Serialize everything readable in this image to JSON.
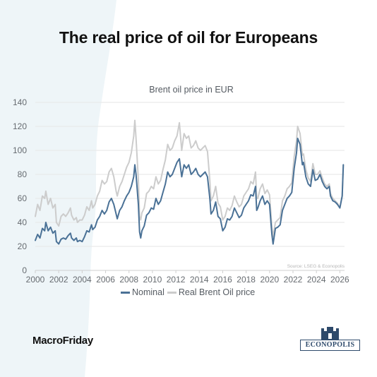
{
  "headline": "The real price of oil for Europeans",
  "footer": {
    "tag": "MacroFriday",
    "logo_text": "ECONOPOLIS"
  },
  "colors": {
    "nominal": "#4a7196",
    "real": "#cccccc",
    "background_band": "#eef5f8"
  },
  "chart_data": {
    "type": "line",
    "title": "Brent oil price in EUR",
    "source_note": "Source: LSEG & Econopolis",
    "xlim": [
      2000,
      2026.4
    ],
    "ylim": [
      0,
      140
    ],
    "yticks": [
      "0",
      "20",
      "40",
      "60",
      "80",
      "100",
      "120",
      "140"
    ],
    "xticks": [
      "2000",
      "2002",
      "2004",
      "2006",
      "2008",
      "2010",
      "2012",
      "2014",
      "2016",
      "2018",
      "2020",
      "2022",
      "2024",
      "2026"
    ],
    "grid": "horizontal",
    "legend_position": "bottom",
    "series": [
      {
        "name": "Nominal",
        "points": [
          [
            2000.0,
            25
          ],
          [
            2000.2,
            30
          ],
          [
            2000.4,
            27
          ],
          [
            2000.6,
            35
          ],
          [
            2000.8,
            33
          ],
          [
            2000.9,
            40
          ],
          [
            2001.1,
            33
          ],
          [
            2001.3,
            36
          ],
          [
            2001.5,
            31
          ],
          [
            2001.7,
            33
          ],
          [
            2001.8,
            24
          ],
          [
            2002.0,
            22
          ],
          [
            2002.2,
            26
          ],
          [
            2002.4,
            27
          ],
          [
            2002.6,
            26
          ],
          [
            2002.8,
            29
          ],
          [
            2003.0,
            31
          ],
          [
            2003.1,
            27
          ],
          [
            2003.3,
            25
          ],
          [
            2003.5,
            27
          ],
          [
            2003.6,
            24
          ],
          [
            2003.8,
            25
          ],
          [
            2004.0,
            24
          ],
          [
            2004.2,
            28
          ],
          [
            2004.4,
            33
          ],
          [
            2004.6,
            32
          ],
          [
            2004.8,
            38
          ],
          [
            2004.9,
            34
          ],
          [
            2005.1,
            36
          ],
          [
            2005.3,
            42
          ],
          [
            2005.5,
            45
          ],
          [
            2005.7,
            50
          ],
          [
            2005.9,
            47
          ],
          [
            2006.1,
            50
          ],
          [
            2006.3,
            57
          ],
          [
            2006.5,
            60
          ],
          [
            2006.7,
            55
          ],
          [
            2006.9,
            47
          ],
          [
            2007.0,
            43
          ],
          [
            2007.2,
            50
          ],
          [
            2007.4,
            53
          ],
          [
            2007.6,
            58
          ],
          [
            2007.8,
            62
          ],
          [
            2008.0,
            65
          ],
          [
            2008.2,
            70
          ],
          [
            2008.4,
            78
          ],
          [
            2008.5,
            88
          ],
          [
            2008.6,
            80
          ],
          [
            2008.8,
            55
          ],
          [
            2008.9,
            32
          ],
          [
            2009.0,
            27
          ],
          [
            2009.1,
            33
          ],
          [
            2009.3,
            37
          ],
          [
            2009.5,
            46
          ],
          [
            2009.7,
            48
          ],
          [
            2009.9,
            52
          ],
          [
            2010.1,
            51
          ],
          [
            2010.3,
            60
          ],
          [
            2010.5,
            55
          ],
          [
            2010.7,
            58
          ],
          [
            2010.9,
            65
          ],
          [
            2011.1,
            72
          ],
          [
            2011.3,
            82
          ],
          [
            2011.5,
            78
          ],
          [
            2011.7,
            80
          ],
          [
            2011.9,
            85
          ],
          [
            2012.1,
            90
          ],
          [
            2012.3,
            93
          ],
          [
            2012.5,
            78
          ],
          [
            2012.7,
            88
          ],
          [
            2012.9,
            85
          ],
          [
            2013.1,
            88
          ],
          [
            2013.3,
            80
          ],
          [
            2013.5,
            82
          ],
          [
            2013.7,
            85
          ],
          [
            2013.9,
            80
          ],
          [
            2014.1,
            78
          ],
          [
            2014.3,
            80
          ],
          [
            2014.5,
            82
          ],
          [
            2014.7,
            78
          ],
          [
            2014.9,
            60
          ],
          [
            2015.0,
            47
          ],
          [
            2015.2,
            50
          ],
          [
            2015.4,
            57
          ],
          [
            2015.6,
            45
          ],
          [
            2015.8,
            43
          ],
          [
            2016.0,
            33
          ],
          [
            2016.2,
            36
          ],
          [
            2016.4,
            43
          ],
          [
            2016.6,
            42
          ],
          [
            2016.8,
            45
          ],
          [
            2017.0,
            52
          ],
          [
            2017.2,
            48
          ],
          [
            2017.4,
            44
          ],
          [
            2017.6,
            46
          ],
          [
            2017.8,
            52
          ],
          [
            2018.0,
            55
          ],
          [
            2018.2,
            58
          ],
          [
            2018.4,
            63
          ],
          [
            2018.6,
            62
          ],
          [
            2018.8,
            70
          ],
          [
            2018.9,
            50
          ],
          [
            2019.0,
            52
          ],
          [
            2019.2,
            58
          ],
          [
            2019.4,
            62
          ],
          [
            2019.6,
            55
          ],
          [
            2019.8,
            58
          ],
          [
            2020.0,
            55
          ],
          [
            2020.2,
            30
          ],
          [
            2020.3,
            22
          ],
          [
            2020.5,
            35
          ],
          [
            2020.7,
            36
          ],
          [
            2020.9,
            38
          ],
          [
            2021.1,
            50
          ],
          [
            2021.3,
            55
          ],
          [
            2021.5,
            60
          ],
          [
            2021.7,
            62
          ],
          [
            2021.9,
            65
          ],
          [
            2022.1,
            85
          ],
          [
            2022.3,
            98
          ],
          [
            2022.4,
            110
          ],
          [
            2022.6,
            105
          ],
          [
            2022.8,
            88
          ],
          [
            2022.9,
            90
          ],
          [
            2023.1,
            78
          ],
          [
            2023.3,
            72
          ],
          [
            2023.5,
            70
          ],
          [
            2023.7,
            84
          ],
          [
            2023.9,
            75
          ],
          [
            2024.1,
            76
          ],
          [
            2024.3,
            80
          ],
          [
            2024.5,
            74
          ],
          [
            2024.7,
            70
          ],
          [
            2024.9,
            68
          ],
          [
            2025.1,
            70
          ],
          [
            2025.2,
            62
          ],
          [
            2025.4,
            58
          ],
          [
            2025.6,
            57
          ],
          [
            2025.8,
            55
          ],
          [
            2026.0,
            52
          ],
          [
            2026.2,
            62
          ],
          [
            2026.3,
            88
          ]
        ]
      },
      {
        "name": "Real Brent Oil price",
        "points": [
          [
            2000.0,
            45
          ],
          [
            2000.2,
            55
          ],
          [
            2000.4,
            50
          ],
          [
            2000.6,
            62
          ],
          [
            2000.8,
            60
          ],
          [
            2000.9,
            66
          ],
          [
            2001.1,
            55
          ],
          [
            2001.3,
            60
          ],
          [
            2001.5,
            52
          ],
          [
            2001.7,
            55
          ],
          [
            2001.8,
            40
          ],
          [
            2002.0,
            37
          ],
          [
            2002.2,
            45
          ],
          [
            2002.4,
            47
          ],
          [
            2002.6,
            45
          ],
          [
            2002.8,
            48
          ],
          [
            2003.0,
            52
          ],
          [
            2003.1,
            46
          ],
          [
            2003.3,
            42
          ],
          [
            2003.5,
            44
          ],
          [
            2003.6,
            40
          ],
          [
            2003.8,
            42
          ],
          [
            2004.0,
            42
          ],
          [
            2004.2,
            46
          ],
          [
            2004.4,
            53
          ],
          [
            2004.6,
            50
          ],
          [
            2004.8,
            58
          ],
          [
            2004.9,
            52
          ],
          [
            2005.1,
            55
          ],
          [
            2005.3,
            62
          ],
          [
            2005.5,
            66
          ],
          [
            2005.7,
            75
          ],
          [
            2005.9,
            72
          ],
          [
            2006.1,
            74
          ],
          [
            2006.3,
            82
          ],
          [
            2006.5,
            85
          ],
          [
            2006.7,
            78
          ],
          [
            2006.9,
            66
          ],
          [
            2007.0,
            62
          ],
          [
            2007.2,
            70
          ],
          [
            2007.4,
            74
          ],
          [
            2007.6,
            80
          ],
          [
            2007.8,
            86
          ],
          [
            2008.0,
            90
          ],
          [
            2008.2,
            98
          ],
          [
            2008.4,
            112
          ],
          [
            2008.5,
            125
          ],
          [
            2008.6,
            110
          ],
          [
            2008.8,
            75
          ],
          [
            2008.9,
            45
          ],
          [
            2009.0,
            42
          ],
          [
            2009.1,
            48
          ],
          [
            2009.3,
            52
          ],
          [
            2009.5,
            64
          ],
          [
            2009.7,
            66
          ],
          [
            2009.9,
            70
          ],
          [
            2010.1,
            68
          ],
          [
            2010.3,
            78
          ],
          [
            2010.5,
            72
          ],
          [
            2010.7,
            75
          ],
          [
            2010.9,
            84
          ],
          [
            2011.1,
            92
          ],
          [
            2011.3,
            105
          ],
          [
            2011.5,
            100
          ],
          [
            2011.7,
            102
          ],
          [
            2011.9,
            108
          ],
          [
            2012.1,
            112
          ],
          [
            2012.3,
            123
          ],
          [
            2012.5,
            100
          ],
          [
            2012.7,
            114
          ],
          [
            2012.9,
            110
          ],
          [
            2013.1,
            112
          ],
          [
            2013.3,
            102
          ],
          [
            2013.5,
            104
          ],
          [
            2013.7,
            108
          ],
          [
            2013.9,
            102
          ],
          [
            2014.1,
            100
          ],
          [
            2014.3,
            102
          ],
          [
            2014.5,
            104
          ],
          [
            2014.7,
            99
          ],
          [
            2014.9,
            75
          ],
          [
            2015.0,
            58
          ],
          [
            2015.2,
            62
          ],
          [
            2015.4,
            70
          ],
          [
            2015.6,
            56
          ],
          [
            2015.8,
            53
          ],
          [
            2016.0,
            42
          ],
          [
            2016.2,
            45
          ],
          [
            2016.4,
            52
          ],
          [
            2016.6,
            50
          ],
          [
            2016.8,
            54
          ],
          [
            2017.0,
            62
          ],
          [
            2017.2,
            57
          ],
          [
            2017.4,
            53
          ],
          [
            2017.6,
            55
          ],
          [
            2017.8,
            62
          ],
          [
            2018.0,
            65
          ],
          [
            2018.2,
            68
          ],
          [
            2018.4,
            74
          ],
          [
            2018.6,
            72
          ],
          [
            2018.8,
            82
          ],
          [
            2018.9,
            60
          ],
          [
            2019.0,
            60
          ],
          [
            2019.2,
            68
          ],
          [
            2019.4,
            72
          ],
          [
            2019.6,
            64
          ],
          [
            2019.8,
            67
          ],
          [
            2020.0,
            63
          ],
          [
            2020.2,
            36
          ],
          [
            2020.3,
            28
          ],
          [
            2020.5,
            40
          ],
          [
            2020.7,
            42
          ],
          [
            2020.9,
            44
          ],
          [
            2021.1,
            58
          ],
          [
            2021.3,
            62
          ],
          [
            2021.5,
            68
          ],
          [
            2021.7,
            70
          ],
          [
            2021.9,
            73
          ],
          [
            2022.1,
            95
          ],
          [
            2022.3,
            108
          ],
          [
            2022.4,
            120
          ],
          [
            2022.6,
            114
          ],
          [
            2022.8,
            96
          ],
          [
            2022.9,
            97
          ],
          [
            2023.1,
            84
          ],
          [
            2023.3,
            77
          ],
          [
            2023.5,
            74
          ],
          [
            2023.7,
            89
          ],
          [
            2023.9,
            80
          ],
          [
            2024.1,
            80
          ],
          [
            2024.3,
            83
          ],
          [
            2024.5,
            77
          ],
          [
            2024.7,
            72
          ],
          [
            2024.9,
            70
          ],
          [
            2025.1,
            72
          ],
          [
            2025.2,
            64
          ],
          [
            2025.4,
            60
          ],
          [
            2025.6,
            58
          ],
          [
            2025.8,
            56
          ],
          [
            2026.0,
            52
          ],
          [
            2026.2,
            62
          ],
          [
            2026.3,
            88
          ]
        ]
      }
    ]
  }
}
